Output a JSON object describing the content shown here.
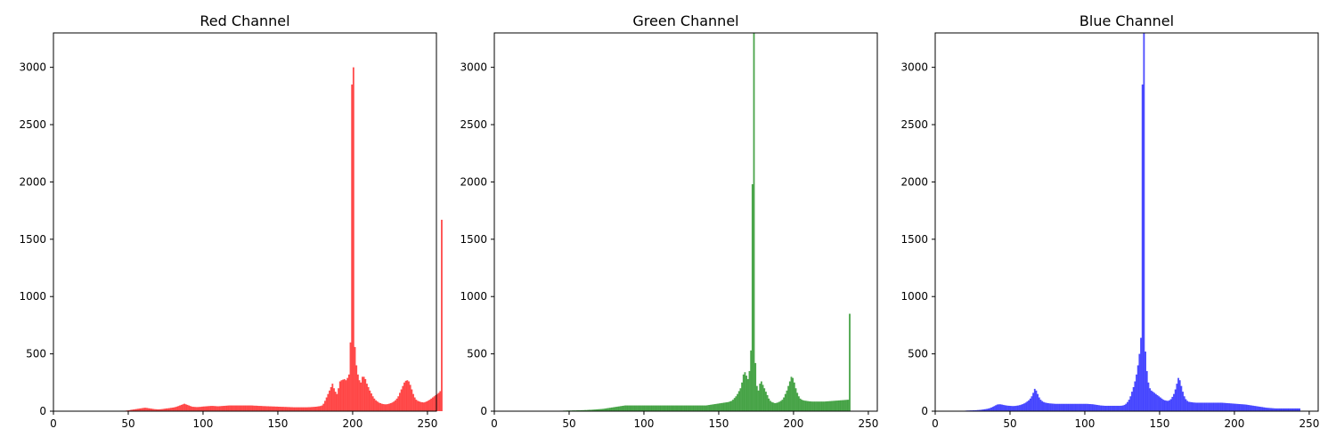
{
  "chart_data": [
    {
      "type": "bar",
      "title": "Red Channel",
      "color": "#ff0000",
      "opacity": 0.7,
      "xlabel": "",
      "ylabel": "",
      "xlim": [
        0,
        256
      ],
      "ylim": [
        0,
        3300
      ],
      "xticks": [
        0,
        50,
        100,
        150,
        200,
        250
      ],
      "yticks": [
        0,
        500,
        1000,
        1500,
        2000,
        2500,
        3000
      ],
      "grid": false,
      "x_start": 0,
      "bin_width": 1,
      "values": [
        0,
        0,
        0,
        0,
        0,
        0,
        0,
        0,
        0,
        0,
        0,
        0,
        0,
        0,
        0,
        0,
        0,
        0,
        0,
        0,
        0,
        0,
        0,
        0,
        0,
        0,
        0,
        0,
        0,
        0,
        0,
        0,
        0,
        0,
        0,
        0,
        0,
        0,
        0,
        0,
        0,
        0,
        0,
        0,
        0,
        0,
        0,
        0,
        5,
        7,
        8,
        11,
        13,
        15,
        17,
        19,
        21,
        23,
        25,
        27,
        29,
        30,
        28,
        26,
        24,
        22,
        20,
        18,
        17,
        16,
        16,
        17,
        18,
        20,
        22,
        24,
        25,
        27,
        29,
        31,
        33,
        36,
        40,
        45,
        50,
        55,
        60,
        65,
        60,
        55,
        50,
        45,
        40,
        38,
        37,
        36,
        36,
        37,
        38,
        40,
        41,
        42,
        43,
        44,
        45,
        46,
        46,
        45,
        44,
        43,
        43,
        44,
        45,
        46,
        47,
        48,
        49,
        50,
        50,
        50,
        50,
        50,
        50,
        50,
        50,
        50,
        50,
        50,
        50,
        50,
        50,
        50,
        50,
        49,
        48,
        48,
        47,
        46,
        46,
        45,
        44,
        44,
        43,
        43,
        42,
        42,
        41,
        41,
        40,
        40,
        39,
        39,
        38,
        38,
        37,
        37,
        36,
        36,
        35,
        35,
        34,
        34,
        34,
        34,
        34,
        34,
        34,
        34,
        34,
        34,
        35,
        35,
        36,
        37,
        38,
        39,
        41,
        43,
        45,
        50,
        65,
        90,
        120,
        150,
        180,
        210,
        240,
        200,
        170,
        150,
        200,
        260,
        270,
        275,
        280,
        270,
        290,
        320,
        600,
        2850,
        3000,
        560,
        400,
        320,
        270,
        250,
        300,
        300,
        280,
        240,
        210,
        180,
        155,
        130,
        110,
        95,
        85,
        75,
        70,
        65,
        62,
        60,
        60,
        62,
        66,
        70,
        76,
        84,
        95,
        110,
        130,
        160,
        190,
        220,
        250,
        265,
        270,
        260,
        230,
        190,
        150,
        120,
        100,
        90,
        85,
        80,
        78,
        76,
        80,
        85,
        92,
        100,
        110,
        120,
        130,
        140,
        150,
        160,
        175,
        1670
      ]
    },
    {
      "type": "bar",
      "title": "Green Channel",
      "color": "#008000",
      "opacity": 0.7,
      "xlabel": "",
      "ylabel": "",
      "xlim": [
        0,
        256
      ],
      "ylim": [
        0,
        3300
      ],
      "xticks": [
        0,
        50,
        100,
        150,
        200,
        250
      ],
      "yticks": [
        0,
        500,
        1000,
        1500,
        2000,
        2500,
        3000
      ],
      "grid": false,
      "x_start": 0,
      "bin_width": 1,
      "values": [
        0,
        0,
        0,
        0,
        0,
        0,
        0,
        0,
        0,
        0,
        0,
        0,
        0,
        0,
        0,
        0,
        0,
        0,
        0,
        0,
        0,
        0,
        0,
        0,
        0,
        0,
        0,
        0,
        0,
        0,
        0,
        0,
        0,
        0,
        0,
        0,
        0,
        0,
        0,
        0,
        0,
        0,
        3,
        3,
        4,
        4,
        5,
        5,
        6,
        6,
        6,
        6,
        7,
        7,
        7,
        8,
        8,
        8,
        9,
        9,
        10,
        10,
        11,
        12,
        12,
        13,
        14,
        15,
        16,
        17,
        18,
        19,
        20,
        22,
        24,
        26,
        28,
        30,
        32,
        34,
        36,
        38,
        40,
        42,
        44,
        46,
        48,
        50,
        50,
        50,
        50,
        50,
        50,
        50,
        50,
        50,
        50,
        50,
        50,
        50,
        50,
        50,
        50,
        50,
        50,
        50,
        50,
        50,
        50,
        50,
        50,
        50,
        50,
        50,
        50,
        50,
        50,
        50,
        50,
        50,
        50,
        50,
        50,
        50,
        50,
        50,
        50,
        50,
        50,
        50,
        50,
        50,
        50,
        50,
        50,
        50,
        50,
        50,
        50,
        50,
        50,
        50,
        52,
        54,
        56,
        58,
        60,
        62,
        64,
        66,
        68,
        70,
        72,
        74,
        76,
        78,
        80,
        85,
        90,
        100,
        115,
        130,
        150,
        175,
        200,
        250,
        320,
        340,
        310,
        280,
        350,
        530,
        1980,
        3300,
        420,
        220,
        180,
        240,
        260,
        230,
        200,
        170,
        140,
        110,
        90,
        80,
        75,
        70,
        72,
        76,
        82,
        90,
        100,
        120,
        150,
        180,
        220,
        260,
        300,
        290,
        250,
        200,
        160,
        130,
        110,
        100,
        95,
        92,
        90,
        88,
        86,
        85,
        84,
        84,
        84,
        84,
        84,
        84,
        84,
        84,
        84,
        85,
        86,
        87,
        88,
        89,
        90,
        91,
        92,
        93,
        94,
        95,
        96,
        97,
        98,
        99,
        100,
        850
      ]
    },
    {
      "type": "bar",
      "title": "Blue Channel",
      "color": "#0000ff",
      "opacity": 0.7,
      "xlabel": "",
      "ylabel": "",
      "xlim": [
        0,
        256
      ],
      "ylim": [
        0,
        3300
      ],
      "xticks": [
        0,
        50,
        100,
        150,
        200,
        250
      ],
      "yticks": [
        0,
        500,
        1000,
        1500,
        2000,
        2500,
        3000
      ],
      "grid": false,
      "x_start": 0,
      "bin_width": 1,
      "values": [
        0,
        0,
        0,
        0,
        0,
        0,
        0,
        0,
        0,
        0,
        0,
        0,
        0,
        0,
        0,
        0,
        0,
        0,
        0,
        0,
        5,
        6,
        6,
        7,
        7,
        8,
        8,
        9,
        10,
        11,
        12,
        14,
        16,
        18,
        20,
        23,
        27,
        32,
        38,
        45,
        52,
        58,
        60,
        60,
        58,
        55,
        52,
        50,
        48,
        47,
        46,
        45,
        45,
        46,
        48,
        50,
        53,
        57,
        62,
        68,
        75,
        85,
        95,
        110,
        130,
        160,
        195,
        180,
        150,
        120,
        100,
        88,
        80,
        75,
        72,
        70,
        68,
        67,
        66,
        65,
        64,
        64,
        64,
        64,
        64,
        64,
        64,
        64,
        64,
        64,
        64,
        64,
        64,
        64,
        64,
        64,
        64,
        64,
        64,
        64,
        64,
        64,
        63,
        62,
        61,
        60,
        58,
        56,
        54,
        52,
        50,
        49,
        48,
        47,
        47,
        47,
        47,
        47,
        47,
        47,
        47,
        47,
        47,
        47,
        48,
        50,
        55,
        65,
        80,
        100,
        130,
        170,
        210,
        260,
        320,
        400,
        500,
        640,
        2850,
        3300,
        520,
        350,
        250,
        200,
        180,
        170,
        160,
        150,
        140,
        130,
        120,
        110,
        100,
        95,
        92,
        90,
        95,
        105,
        125,
        150,
        190,
        240,
        290,
        270,
        220,
        170,
        130,
        105,
        90,
        82,
        80,
        78,
        76,
        75,
        74,
        74,
        74,
        74,
        74,
        74,
        74,
        74,
        74,
        74,
        74,
        74,
        74,
        74,
        74,
        74,
        74,
        74,
        73,
        72,
        71,
        70,
        69,
        68,
        67,
        66,
        65,
        64,
        63,
        62,
        61,
        60,
        59,
        58,
        56,
        54,
        52,
        50,
        48,
        46,
        44,
        42,
        40,
        38,
        36,
        34,
        32,
        30,
        29,
        28,
        27,
        26,
        25,
        24,
        24,
        24,
        24,
        24,
        24,
        24,
        24,
        24,
        24,
        24,
        24,
        24,
        24,
        24,
        24,
        24
      ]
    }
  ]
}
